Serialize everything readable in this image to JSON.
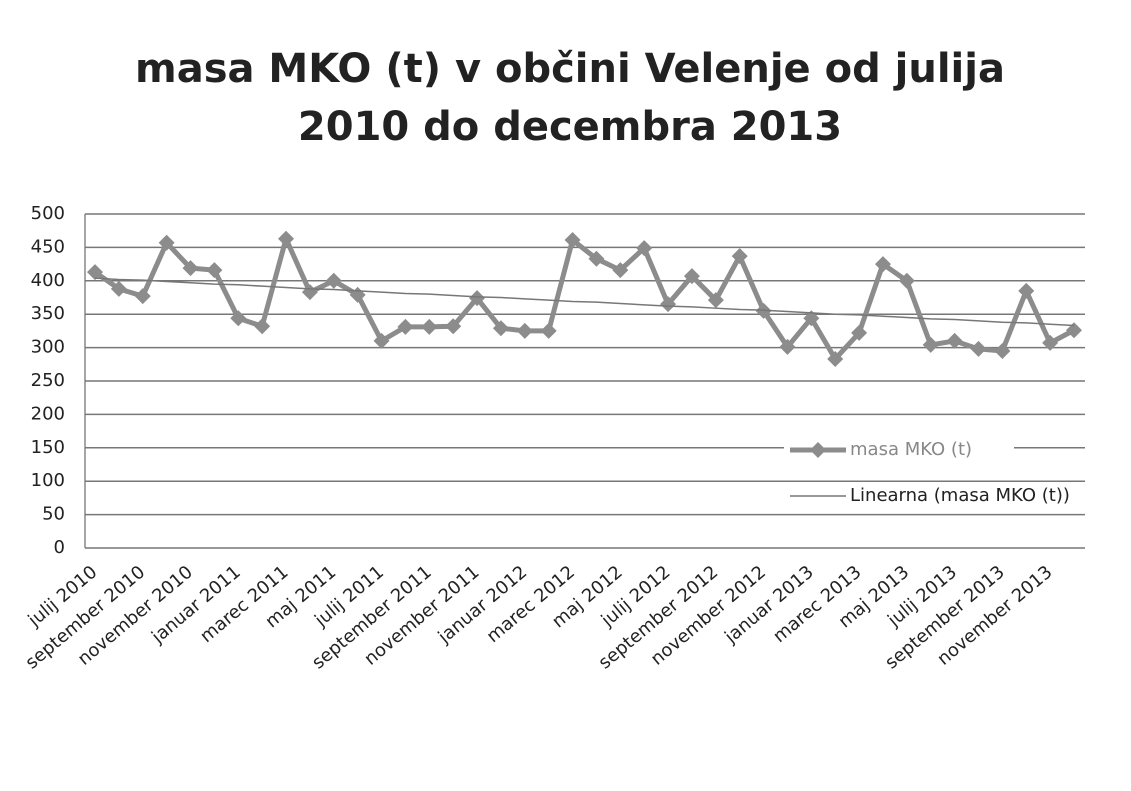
{
  "chart_data": {
    "type": "line",
    "title": "masa MKO (t) v občini Velenje od julija 2010 do decembra 2013",
    "categories": [
      "julij 2010",
      null,
      "september 2010",
      null,
      "november 2010",
      null,
      "januar 2011",
      null,
      "marec 2011",
      null,
      "maj 2011",
      null,
      "julij 2011",
      null,
      "september 2011",
      null,
      "november 2011",
      null,
      "januar 2012",
      null,
      "marec 2012",
      null,
      "maj 2012",
      null,
      "julij 2012",
      null,
      "september 2012",
      null,
      "november 2012",
      null,
      "januar 2013",
      null,
      "marec 2013",
      null,
      "maj 2013",
      null,
      "julij 2013",
      null,
      "september 2013",
      null,
      "november 2013",
      null
    ],
    "series": [
      {
        "name": "masa MKO (t)",
        "color": "#8c8c8c",
        "values": [
          413,
          388,
          377,
          457,
          419,
          416,
          344,
          332,
          463,
          383,
          400,
          379,
          310,
          331,
          331,
          332,
          374,
          329,
          325,
          325,
          461,
          433,
          416,
          449,
          365,
          407,
          371,
          437,
          355,
          301,
          344,
          283,
          322,
          425,
          400,
          304,
          310,
          298,
          295,
          385,
          307,
          326
        ]
      },
      {
        "name": "Linearna (masa MKO (t))",
        "color": "#777777",
        "values": [
          404,
          402,
          401,
          399,
          397,
          395,
          394,
          392,
          390,
          388,
          387,
          385,
          383,
          381,
          380,
          378,
          376,
          375,
          373,
          371,
          369,
          368,
          366,
          364,
          362,
          361,
          359,
          357,
          356,
          354,
          352,
          350,
          349,
          347,
          345,
          343,
          342,
          340,
          338,
          337,
          335,
          333
        ]
      }
    ],
    "ylim": [
      0,
      500
    ],
    "yticks": [
      0,
      50,
      100,
      150,
      200,
      250,
      300,
      350,
      400,
      450,
      500
    ],
    "grid": true,
    "legend": "right"
  }
}
